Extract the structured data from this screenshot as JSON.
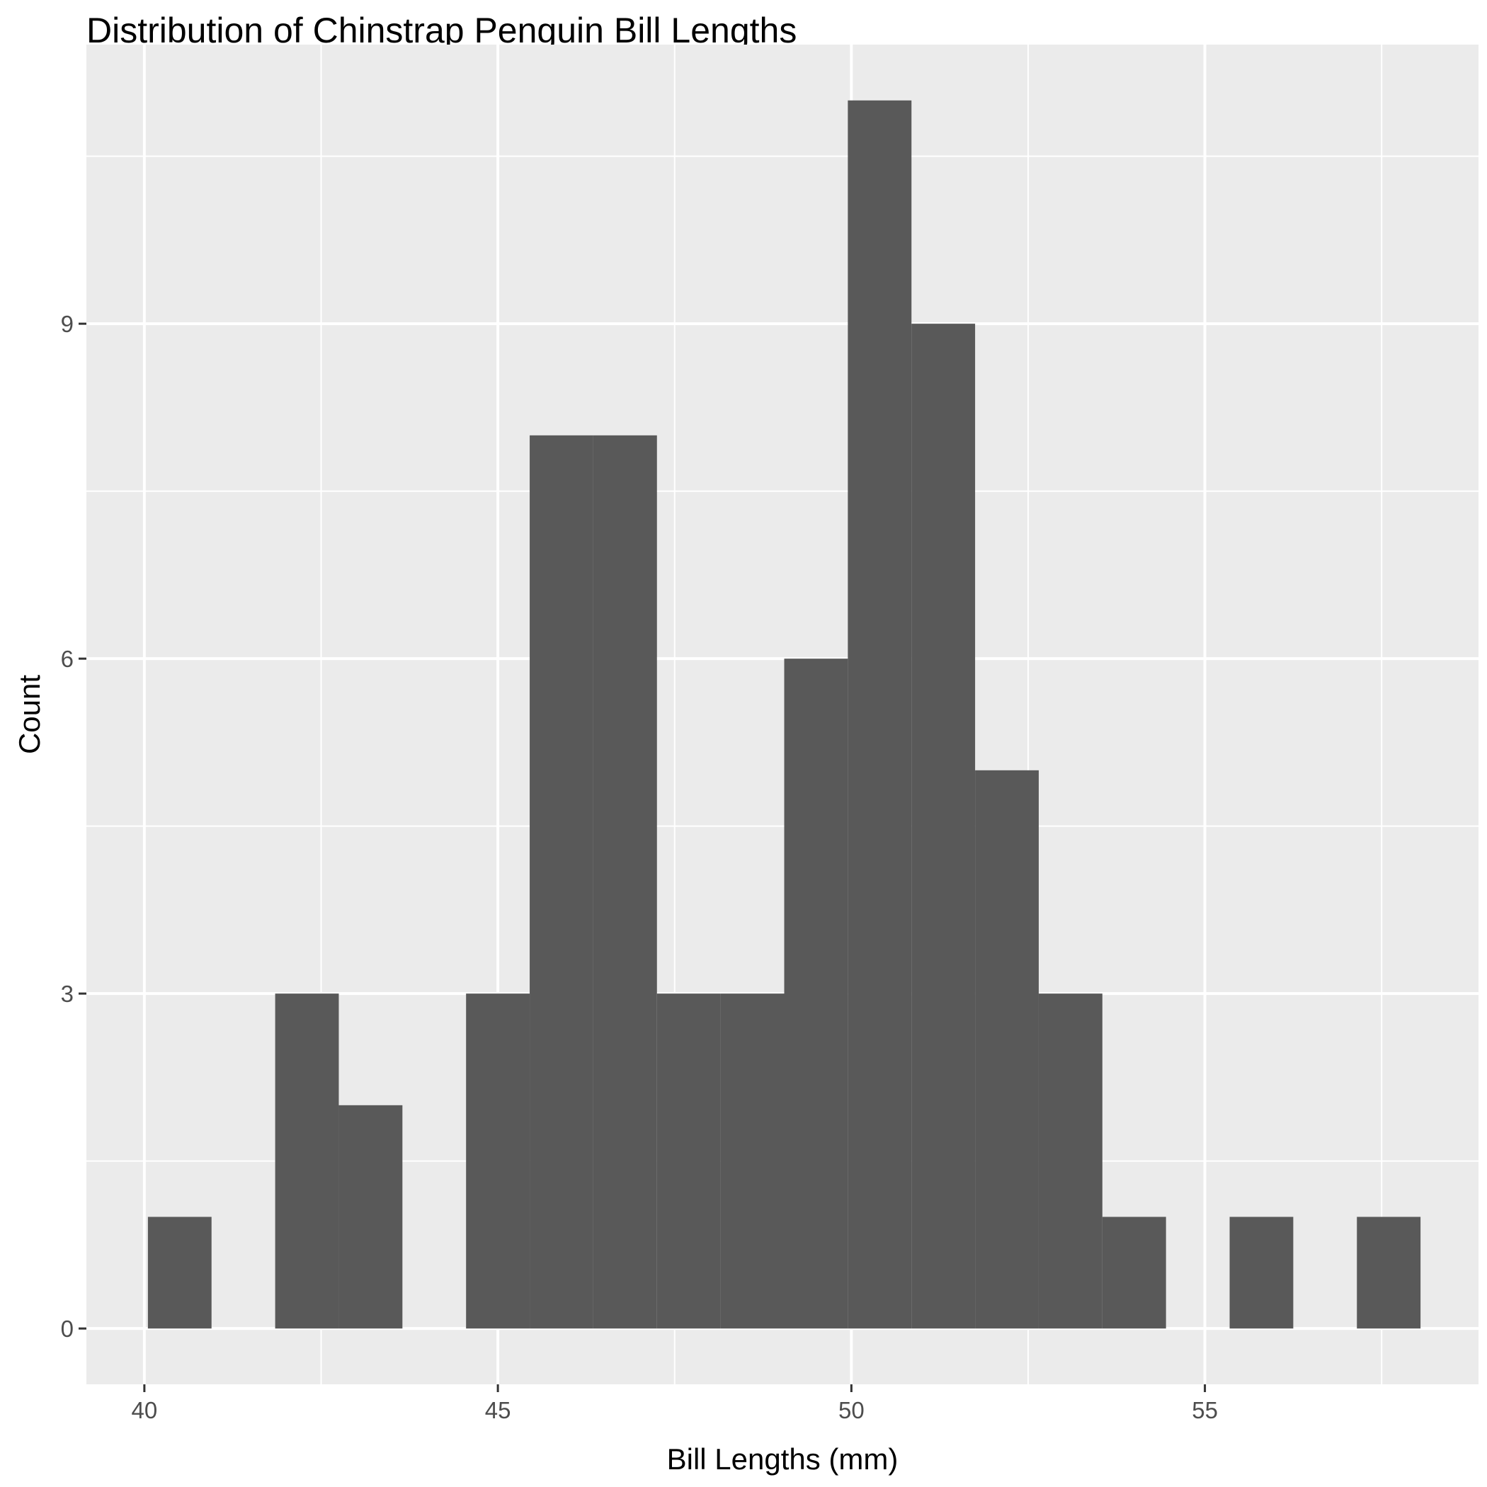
{
  "chart_data": {
    "type": "bar",
    "title": "Distribution of Chinstrap Penguin Bill Lengths",
    "xlabel": "Bill Lengths (mm)",
    "ylabel": "Count",
    "xlim": [
      39.18,
      58.87
    ],
    "ylim": [
      -0.5,
      11.5
    ],
    "x_ticks": [
      40,
      45,
      50,
      55
    ],
    "y_ticks": [
      0,
      3,
      6,
      9
    ],
    "grid": true,
    "bin_width": 0.9,
    "bins": [
      {
        "x0": 40.05,
        "x1": 40.95,
        "count": 1
      },
      {
        "x0": 40.95,
        "x1": 41.85,
        "count": 0
      },
      {
        "x0": 41.85,
        "x1": 42.75,
        "count": 3
      },
      {
        "x0": 42.75,
        "x1": 43.65,
        "count": 2
      },
      {
        "x0": 43.65,
        "x1": 44.55,
        "count": 0
      },
      {
        "x0": 44.55,
        "x1": 45.45,
        "count": 3
      },
      {
        "x0": 45.45,
        "x1": 46.35,
        "count": 8
      },
      {
        "x0": 46.35,
        "x1": 47.25,
        "count": 8
      },
      {
        "x0": 47.25,
        "x1": 48.15,
        "count": 3
      },
      {
        "x0": 48.15,
        "x1": 49.05,
        "count": 3
      },
      {
        "x0": 49.05,
        "x1": 49.95,
        "count": 6
      },
      {
        "x0": 49.95,
        "x1": 50.85,
        "count": 11
      },
      {
        "x0": 50.85,
        "x1": 51.75,
        "count": 9
      },
      {
        "x0": 51.75,
        "x1": 52.65,
        "count": 5
      },
      {
        "x0": 52.65,
        "x1": 53.55,
        "count": 3
      },
      {
        "x0": 53.55,
        "x1": 54.45,
        "count": 1
      },
      {
        "x0": 54.45,
        "x1": 55.35,
        "count": 0
      },
      {
        "x0": 55.35,
        "x1": 56.25,
        "count": 1
      },
      {
        "x0": 56.25,
        "x1": 57.15,
        "count": 0
      },
      {
        "x0": 57.15,
        "x1": 58.05,
        "count": 1
      }
    ],
    "colors": {
      "panel_background": "#ebebeb",
      "grid_major": "#ffffff",
      "grid_minor": "#f7f7f7",
      "bar_fill": "#595959",
      "tick_mark": "#333333"
    }
  }
}
